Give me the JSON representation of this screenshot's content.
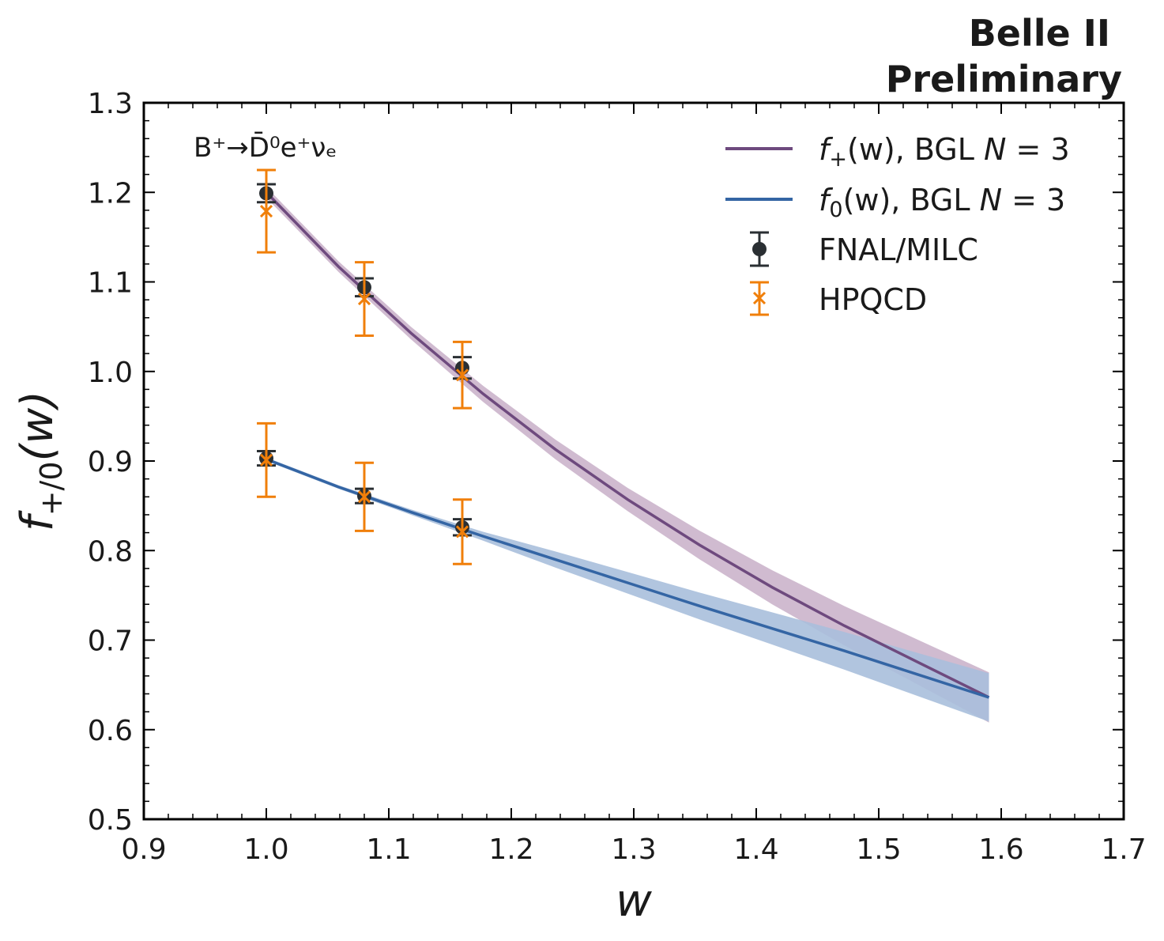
{
  "chart_data": {
    "type": "line",
    "experiment_label": [
      "Belle II",
      "Preliminary"
    ],
    "process_label": "B⁺→D̄⁰e⁺νₑ",
    "xlabel": "w",
    "ylabel": "f+/0(w)",
    "ylabel_parts": {
      "main": "f",
      "sub": "+/0",
      "arg": "(w)"
    },
    "xlim": [
      0.9,
      1.7
    ],
    "ylim": [
      0.5,
      1.3
    ],
    "xticks": [
      "0.9",
      "1.0",
      "1.1",
      "1.2",
      "1.3",
      "1.4",
      "1.5",
      "1.6",
      "1.7"
    ],
    "yticks": [
      "0.5",
      "0.6",
      "0.7",
      "0.8",
      "0.9",
      "1.0",
      "1.1",
      "1.2",
      "1.3"
    ],
    "legend_position": "top-right",
    "colors": {
      "fplus_line": "#6e4a7e",
      "fplus_band": "#c8afc8",
      "fzero_line": "#3465a4",
      "fzero_band": "#a9bfdc",
      "fnal": "#2a2f33",
      "hpqcd": "#f07f0a"
    },
    "series": [
      {
        "name": "fplus",
        "label": "f₊(w), BGL N = 3",
        "label_parts": {
          "f": "f",
          "sub": "+",
          "rest": "(w), BGL ",
          "n": "N",
          "eq": " = 3"
        },
        "kind": "band_line",
        "x": [
          1.0,
          1.059,
          1.118,
          1.177,
          1.236,
          1.295,
          1.354,
          1.413,
          1.472,
          1.531,
          1.59
        ],
        "y": [
          1.2,
          1.117,
          1.043,
          0.975,
          0.913,
          0.857,
          0.806,
          0.759,
          0.716,
          0.676,
          0.636
        ],
        "band_half_width": [
          0.006,
          0.006,
          0.007,
          0.009,
          0.011,
          0.013,
          0.016,
          0.019,
          0.022,
          0.025,
          0.028
        ]
      },
      {
        "name": "fzero",
        "label": "f₀(w), BGL N = 3",
        "label_parts": {
          "f": "f",
          "sub": "0",
          "rest": "(w), BGL ",
          "n": "N",
          "eq": " = 3"
        },
        "kind": "band_line",
        "x": [
          1.0,
          1.059,
          1.118,
          1.177,
          1.236,
          1.295,
          1.354,
          1.413,
          1.472,
          1.531,
          1.59
        ],
        "y": [
          0.902,
          0.871,
          0.843,
          0.816,
          0.79,
          0.764,
          0.738,
          0.713,
          0.688,
          0.662,
          0.636
        ],
        "band_half_width": [
          0.002,
          0.002,
          0.003,
          0.005,
          0.009,
          0.012,
          0.015,
          0.018,
          0.021,
          0.024,
          0.027
        ]
      },
      {
        "name": "fnal",
        "label": "FNAL/MILC",
        "kind": "points",
        "marker": "circle",
        "x": [
          1.0,
          1.08,
          1.16,
          1.0,
          1.08,
          1.16
        ],
        "y": [
          1.199,
          1.094,
          1.004,
          0.903,
          0.861,
          0.826
        ],
        "yerr": [
          0.01,
          0.01,
          0.012,
          0.008,
          0.008,
          0.009
        ]
      },
      {
        "name": "hpqcd",
        "label": "HPQCD",
        "kind": "points",
        "marker": "x",
        "x": [
          1.0,
          1.08,
          1.16,
          1.0,
          1.08,
          1.16
        ],
        "y": [
          1.179,
          1.081,
          0.996,
          0.901,
          0.86,
          0.821
        ],
        "yerr": [
          0.046,
          0.041,
          0.037,
          0.041,
          0.038,
          0.036
        ]
      }
    ]
  }
}
